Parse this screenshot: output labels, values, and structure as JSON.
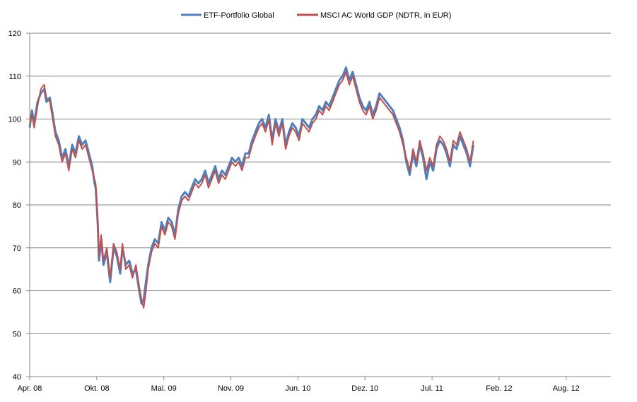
{
  "chart_data": {
    "type": "line",
    "title": "",
    "xlabel": "",
    "ylabel": "",
    "ylim": [
      40,
      120
    ],
    "yticks": [
      40,
      50,
      60,
      70,
      80,
      90,
      100,
      110,
      120
    ],
    "xlim_months": [
      0,
      52
    ],
    "xticks": [
      {
        "label": "Apr. 08",
        "month": 0
      },
      {
        "label": "Okt. 08",
        "month": 6
      },
      {
        "label": "Mai. 09",
        "month": 12
      },
      {
        "label": "Nov. 09",
        "month": 18
      },
      {
        "label": "Jun. 10",
        "month": 24
      },
      {
        "label": "Dez. 10",
        "month": 30
      },
      {
        "label": "Jul. 11",
        "month": 36
      },
      {
        "label": "Feb. 12",
        "month": 42
      },
      {
        "label": "Aug. 12",
        "month": 48
      }
    ],
    "grid": true,
    "legend_position": "top-center",
    "series": [
      {
        "name": "ETF-Portfolio Global",
        "color": "#4f81bd",
        "x": [
          0,
          0.2,
          0.4,
          0.7,
          1.0,
          1.3,
          1.5,
          1.8,
          2.0,
          2.3,
          2.6,
          2.9,
          3.2,
          3.5,
          3.8,
          4.1,
          4.4,
          4.7,
          5.0,
          5.3,
          5.6,
          5.8,
          5.9,
          6.0,
          6.1,
          6.2,
          6.4,
          6.6,
          6.9,
          7.2,
          7.5,
          7.8,
          8.1,
          8.3,
          8.6,
          8.9,
          9.2,
          9.5,
          9.8,
          10.0,
          10.2,
          10.4,
          10.6,
          10.9,
          11.2,
          11.5,
          11.8,
          12.1,
          12.4,
          12.7,
          13.0,
          13.3,
          13.6,
          13.9,
          14.2,
          14.5,
          14.8,
          15.1,
          15.4,
          15.7,
          16.0,
          16.3,
          16.6,
          16.9,
          17.2,
          17.5,
          17.8,
          18.1,
          18.4,
          18.7,
          19.0,
          19.3,
          19.6,
          19.9,
          20.2,
          20.5,
          20.8,
          21.1,
          21.4,
          21.7,
          22.0,
          22.3,
          22.6,
          22.9,
          23.2,
          23.5,
          23.8,
          24.1,
          24.4,
          24.7,
          25.0,
          25.3,
          25.6,
          25.9,
          26.2,
          26.5,
          26.8,
          27.1,
          27.4,
          27.7,
          28.0,
          28.3,
          28.6,
          28.9,
          29.2,
          29.5,
          29.8,
          30.1,
          30.4,
          30.7,
          31.0,
          31.3,
          31.6,
          31.9,
          32.2,
          32.5,
          32.8,
          33.1,
          33.4,
          33.7,
          34.0,
          34.3,
          34.6,
          34.9,
          35.2,
          35.5,
          35.8,
          36.1,
          36.4,
          36.7,
          37.0,
          37.3,
          37.6,
          37.9,
          38.2,
          38.5,
          38.8,
          39.1,
          39.4,
          39.7
        ],
        "values": [
          98,
          102,
          99,
          104,
          106,
          107,
          104,
          105,
          102,
          97,
          95,
          91,
          93,
          89,
          94,
          92,
          96,
          94,
          95,
          92,
          89,
          85,
          84,
          80,
          75,
          67,
          72,
          66,
          69,
          62,
          70,
          68,
          64,
          70,
          66,
          67,
          64,
          65,
          60,
          57,
          58,
          62,
          66,
          70,
          72,
          71,
          76,
          74,
          77,
          76,
          73,
          79,
          82,
          83,
          82,
          84,
          86,
          85,
          86,
          88,
          85,
          87,
          89,
          86,
          88,
          87,
          89,
          91,
          90,
          91,
          89,
          92,
          92,
          95,
          97,
          99,
          100,
          98,
          101,
          95,
          100,
          97,
          100,
          94,
          97,
          99,
          98,
          96,
          100,
          99,
          98,
          100,
          101,
          103,
          102,
          104,
          103,
          105,
          107,
          109,
          110,
          112,
          109,
          111,
          108,
          105,
          103,
          102,
          104,
          101,
          103,
          106,
          105,
          104,
          103,
          102,
          100,
          98,
          95,
          90,
          87,
          92,
          89,
          94,
          91,
          86,
          90,
          88,
          93,
          95,
          94,
          92,
          89,
          94,
          93,
          96,
          94,
          92,
          89,
          94
        ]
      },
      {
        "name": "MSCI AC World GDP (NDTR, in EUR)",
        "color": "#c0504d",
        "x": [
          0,
          0.2,
          0.4,
          0.7,
          1.0,
          1.3,
          1.5,
          1.8,
          2.0,
          2.3,
          2.6,
          2.9,
          3.2,
          3.5,
          3.8,
          4.1,
          4.4,
          4.7,
          5.0,
          5.3,
          5.6,
          5.8,
          5.9,
          6.0,
          6.1,
          6.2,
          6.4,
          6.6,
          6.9,
          7.2,
          7.5,
          7.8,
          8.1,
          8.3,
          8.6,
          8.9,
          9.2,
          9.5,
          9.8,
          10.0,
          10.2,
          10.4,
          10.6,
          10.9,
          11.2,
          11.5,
          11.8,
          12.1,
          12.4,
          12.7,
          13.0,
          13.3,
          13.6,
          13.9,
          14.2,
          14.5,
          14.8,
          15.1,
          15.4,
          15.7,
          16.0,
          16.3,
          16.6,
          16.9,
          17.2,
          17.5,
          17.8,
          18.1,
          18.4,
          18.7,
          19.0,
          19.3,
          19.6,
          19.9,
          20.2,
          20.5,
          20.8,
          21.1,
          21.4,
          21.7,
          22.0,
          22.3,
          22.6,
          22.9,
          23.2,
          23.5,
          23.8,
          24.1,
          24.4,
          24.7,
          25.0,
          25.3,
          25.6,
          25.9,
          26.2,
          26.5,
          26.8,
          27.1,
          27.4,
          27.7,
          28.0,
          28.3,
          28.6,
          28.9,
          29.2,
          29.5,
          29.8,
          30.1,
          30.4,
          30.7,
          31.0,
          31.3,
          31.6,
          31.9,
          32.2,
          32.5,
          32.8,
          33.1,
          33.4,
          33.7,
          34.0,
          34.3,
          34.6,
          34.9,
          35.2,
          35.5,
          35.8,
          36.1,
          36.4,
          36.7,
          37.0,
          37.3,
          37.6,
          37.9,
          38.2,
          38.5,
          38.8,
          39.1,
          39.4,
          39.7
        ],
        "values": [
          99,
          101,
          98,
          103,
          107,
          108,
          105,
          104,
          101,
          96,
          94,
          90,
          92,
          88,
          93,
          91,
          95,
          93,
          94,
          91,
          88,
          86,
          85,
          81,
          76,
          68,
          73,
          67,
          70,
          63,
          71,
          69,
          65,
          71,
          65,
          66,
          63,
          66,
          61,
          58,
          56,
          60,
          65,
          69,
          71,
          70,
          75,
          73,
          76,
          75,
          72,
          78,
          81,
          82,
          81,
          83,
          85,
          84,
          85,
          87,
          84,
          86,
          88,
          85,
          87,
          86,
          88,
          90,
          89,
          90,
          88,
          91,
          91,
          94,
          96,
          98,
          99,
          97,
          100,
          94,
          99,
          96,
          99,
          93,
          96,
          98,
          97,
          95,
          99,
          98,
          97,
          99,
          100,
          102,
          101,
          103,
          102,
          104,
          106,
          108,
          109,
          111,
          108,
          110,
          107,
          104,
          102,
          101,
          103,
          100,
          102,
          105,
          104,
          103,
          102,
          101,
          99,
          97,
          94,
          91,
          88,
          93,
          90,
          95,
          92,
          88,
          91,
          89,
          94,
          96,
          95,
          93,
          90,
          95,
          94,
          97,
          95,
          93,
          90,
          95
        ]
      }
    ]
  }
}
